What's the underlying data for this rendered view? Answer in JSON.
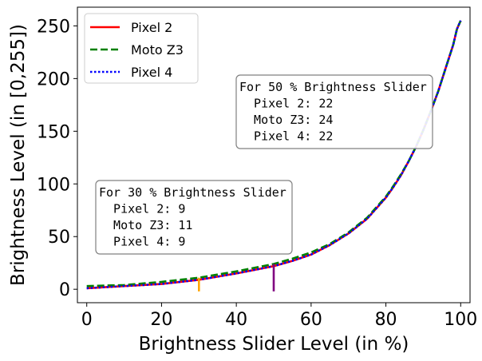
{
  "chart_data": {
    "type": "line",
    "title": "",
    "xlabel": "Brightness Slider Level (in %)",
    "ylabel": "Brightness Level (in [0,255])",
    "xlim": [
      -2.5,
      102.5
    ],
    "ylim": [
      -12.75,
      267.75
    ],
    "xticks": [
      0,
      20,
      40,
      60,
      80,
      100
    ],
    "yticks": [
      0,
      50,
      100,
      150,
      200,
      250
    ],
    "grid": false,
    "legend_position": "upper-left",
    "series": [
      {
        "name": "Pixel 2",
        "color": "#ff0000",
        "dash": "solid",
        "x": [
          0,
          10,
          20,
          30,
          40,
          50,
          55,
          60,
          65,
          70,
          75,
          80,
          82,
          84,
          86,
          88,
          90,
          92,
          94,
          96,
          98,
          99,
          100
        ],
        "y": [
          1,
          3,
          5,
          9,
          15,
          22,
          27,
          33,
          42,
          53,
          67,
          87,
          97,
          108,
          121,
          135,
          151,
          169,
          188,
          210,
          232,
          247,
          255
        ]
      },
      {
        "name": "Moto Z3",
        "color": "#008000",
        "dash": "dashed",
        "x": [
          0,
          10,
          20,
          30,
          40,
          50,
          55,
          60,
          65,
          70,
          75,
          80,
          82,
          84,
          86,
          88,
          90,
          92,
          94,
          96,
          98,
          99,
          100
        ],
        "y": [
          3,
          4,
          7,
          11,
          17,
          24,
          29,
          35,
          43,
          54,
          68,
          88,
          98,
          109,
          121,
          135,
          151,
          169,
          188,
          210,
          232,
          247,
          255
        ]
      },
      {
        "name": "Pixel 4",
        "color": "#0000ff",
        "dash": "dotted",
        "x": [
          0,
          10,
          20,
          30,
          40,
          50,
          55,
          60,
          65,
          70,
          75,
          80,
          82,
          84,
          86,
          88,
          90,
          92,
          94,
          96,
          98,
          99,
          100
        ],
        "y": [
          1,
          3,
          5,
          9,
          15,
          22,
          27,
          33,
          42,
          53,
          67,
          87,
          97,
          108,
          121,
          135,
          151,
          169,
          188,
          210,
          232,
          247,
          255
        ]
      }
    ],
    "markers": [
      {
        "x": 30,
        "y_from": -2,
        "y_to": 11,
        "color": "#ffa500"
      },
      {
        "x": 50,
        "y_from": -2,
        "y_to": 24,
        "color": "#800080"
      }
    ],
    "annotations": [
      {
        "id": "box30",
        "title": "For 30 % Brightness Slider",
        "lines": [
          "Pixel 2: 9",
          "Moto Z3: 11",
          "Pixel 4: 9"
        ]
      },
      {
        "id": "box50",
        "title": "For 50 % Brightness Slider",
        "lines": [
          "Pixel 2: 22",
          "Moto Z3: 24",
          "Pixel 4: 22"
        ]
      }
    ]
  }
}
